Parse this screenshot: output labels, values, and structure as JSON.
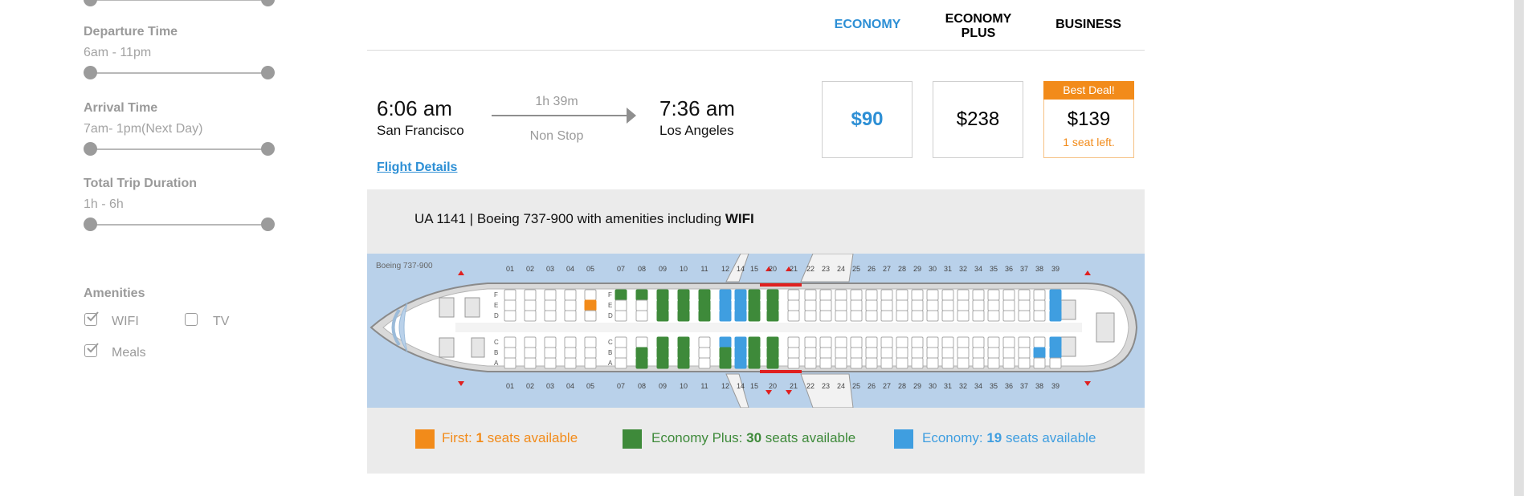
{
  "filters": {
    "departure": {
      "label": "Departure Time",
      "range": "6am - 11pm"
    },
    "arrival": {
      "label": "Arrival Time",
      "range": "7am- 1pm(Next Day)"
    },
    "duration": {
      "label": "Total Trip Duration",
      "range": "1h - 6h"
    },
    "amenities": {
      "label": "Amenities",
      "items": [
        {
          "label": "WIFI",
          "checked": true
        },
        {
          "label": "TV",
          "checked": false
        },
        {
          "label": "Meals",
          "checked": true
        }
      ]
    }
  },
  "fare_classes": [
    {
      "label": "ECONOMY",
      "color": "#2d8fd5"
    },
    {
      "label": "ECONOMY PLUS",
      "color": "#000000"
    },
    {
      "label": "BUSINESS",
      "color": "#000000"
    }
  ],
  "flight": {
    "depart_time": "6:06 am",
    "depart_city": "San Francisco",
    "duration": "1h 39m",
    "stops": "Non Stop",
    "arrive_time": "7:36 am",
    "arrive_city": "Los Angeles",
    "details_link": "Flight Details",
    "prices": {
      "economy": "$90",
      "economy_plus": "$238",
      "business": "$139"
    },
    "deal_badge": "Best Deal!",
    "seats_left": "1 seat left."
  },
  "details": {
    "info_prefix": "UA 1141 | Boeing 737-900 with amenities including ",
    "info_bold": "WIFI",
    "aircraft_label": "Boeing 737-900",
    "top_rows": [
      "01",
      "02",
      "03",
      "04",
      "05",
      "07",
      "08",
      "09",
      "10",
      "11",
      "12",
      "14",
      "15",
      "20",
      "21",
      "22",
      "23",
      "24",
      "25",
      "26",
      "27",
      "28",
      "29",
      "30",
      "31",
      "32",
      "34",
      "35",
      "36",
      "37",
      "38",
      "39"
    ],
    "seat_letters_top": [
      "F",
      "E",
      "D"
    ],
    "seat_letters_bottom": [
      "C",
      "B",
      "A"
    ]
  },
  "legend": {
    "first": {
      "prefix": "First: ",
      "count": "1",
      "suffix": " seats available",
      "color": "#f28b1a"
    },
    "economy_plus": {
      "prefix": "Economy Plus: ",
      "count": "30",
      "suffix": " seats available",
      "color": "#3e8a3a"
    },
    "economy": {
      "prefix": "Economy: ",
      "count": "19",
      "suffix": " seats available",
      "color": "#3f9ee0"
    }
  },
  "colors": {
    "accent": "#2d8fd5",
    "deal": "#f28b1a",
    "seat_first": "#f28b1a",
    "seat_economy_plus": "#3e8a3a",
    "seat_economy": "#3f9ee0"
  }
}
